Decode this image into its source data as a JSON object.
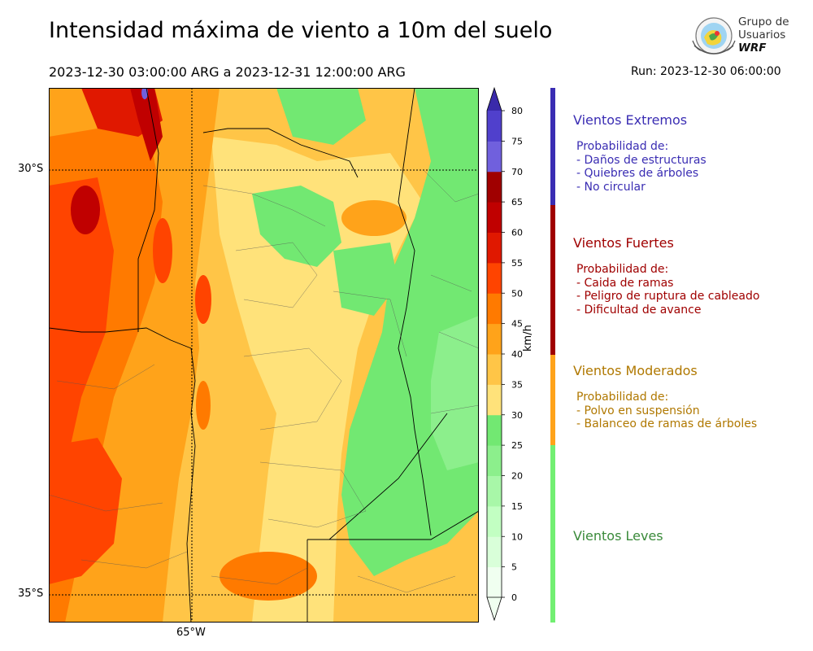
{
  "header": {
    "title": "Intensidad máxima de viento a 10m del suelo",
    "period": "2023-12-30 03:00:00 ARG  a  2023-12-31 12:00:00 ARG",
    "run": "Run: 2023-12-30 06:00:00"
  },
  "logo": {
    "line1": "Grupo de",
    "line2": "Usuarios",
    "line3": "WRF"
  },
  "map": {
    "lat_labels": [
      "30°S",
      "35°S"
    ],
    "lon_labels": [
      "65°W"
    ]
  },
  "colorbar": {
    "unit": "km/h",
    "ticks": [
      "0",
      "5",
      "10",
      "15",
      "20",
      "25",
      "30",
      "35",
      "40",
      "45",
      "50",
      "55",
      "60",
      "65",
      "70",
      "75",
      "80"
    ],
    "colors": [
      "#f0fff0",
      "#d9ffd9",
      "#c2ffc2",
      "#a8f7a8",
      "#8cef8c",
      "#72e872",
      "#ffe27a",
      "#ffc547",
      "#ffa31a",
      "#ff7a00",
      "#ff4400",
      "#e01800",
      "#c00000",
      "#a00000",
      "#7060dd",
      "#5040cc",
      "#3a2aaa"
    ],
    "cap_color": "#3a2aaa"
  },
  "legend": [
    {
      "title": "Vientos Extremos",
      "color": "#3a2db3",
      "bar_color": "#3a2db3",
      "lines": [
        "Probabilidad de:",
        "- Daños de estructuras",
        "- Quiebres de árboles",
        "- No circular"
      ]
    },
    {
      "title": "Vientos Fuertes",
      "color": "#a00000",
      "bar_color": "#a00000",
      "lines": [
        "Probabilidad de:",
        "- Caida de ramas",
        "- Peligro de ruptura de cableado",
        "- Dificultad de avance"
      ]
    },
    {
      "title": "Vientos Moderados",
      "color": "#b07800",
      "bar_color": "#ffa31a",
      "lines": [
        "Probabilidad de:",
        "- Polvo en suspensión",
        "- Balanceo de ramas de árboles"
      ]
    },
    {
      "title": "Vientos Leves",
      "color": "#3a8a3a",
      "bar_color": "#72ef72",
      "lines": []
    }
  ]
}
